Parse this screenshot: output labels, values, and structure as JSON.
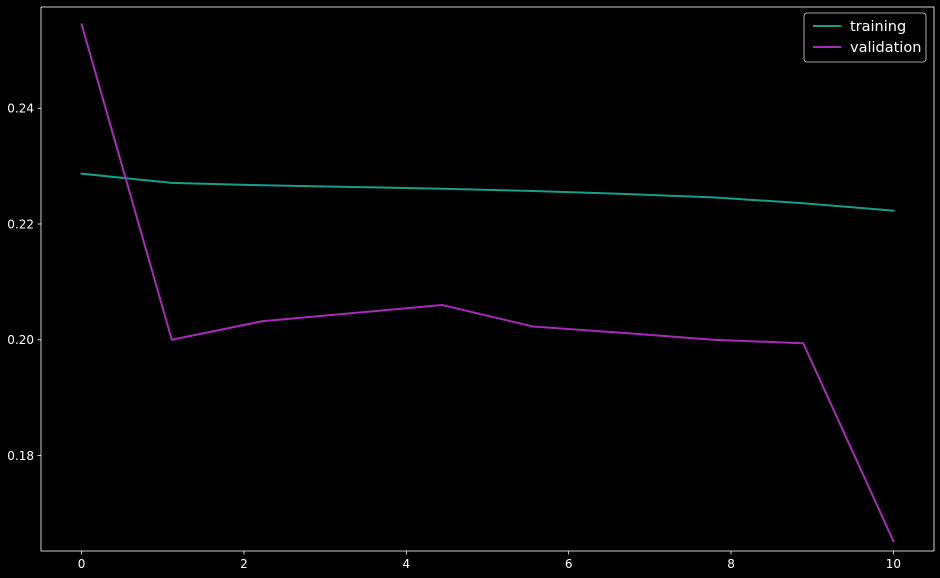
{
  "chart_data": {
    "type": "line",
    "title": "",
    "xlabel": "",
    "ylabel": "",
    "xlim": [
      -0.5,
      10.5
    ],
    "ylim": [
      0.1635,
      0.2575
    ],
    "x_ticks": [
      {
        "value": 0,
        "label": "0"
      },
      {
        "value": 2,
        "label": "2"
      },
      {
        "value": 4,
        "label": "4"
      },
      {
        "value": 6,
        "label": "6"
      },
      {
        "value": 8,
        "label": "8"
      },
      {
        "value": 10,
        "label": "10"
      }
    ],
    "y_ticks": [
      {
        "value": 0.18,
        "label": "0.18"
      },
      {
        "value": 0.2,
        "label": "0.20"
      },
      {
        "value": 0.22,
        "label": "0.22"
      },
      {
        "value": 0.24,
        "label": "0.24"
      }
    ],
    "grid": false,
    "legend_position": "top-right",
    "series": [
      {
        "name": "training",
        "color": "#1a9e8c",
        "x": [
          0,
          1.111,
          2.222,
          3.333,
          4.444,
          5.556,
          6.667,
          7.778,
          8.889,
          10
        ],
        "y": [
          0.2287,
          0.2271,
          0.2267,
          0.2264,
          0.2261,
          0.2257,
          0.2252,
          0.2246,
          0.2236,
          0.2223
        ]
      },
      {
        "name": "validation",
        "color": "#a82bb8",
        "x": [
          0,
          1.111,
          2.222,
          3.333,
          4.444,
          5.556,
          6.667,
          7.778,
          8.889,
          10
        ],
        "y": [
          0.2545,
          0.2,
          0.2032,
          0.2046,
          0.206,
          0.2023,
          0.2012,
          0.2,
          0.1994,
          0.1652
        ]
      }
    ]
  },
  "theme": {
    "background": "#000000",
    "axis_color": "#ffffff",
    "text_color": "#ffffff",
    "legend_border": "#d8d8d8"
  }
}
